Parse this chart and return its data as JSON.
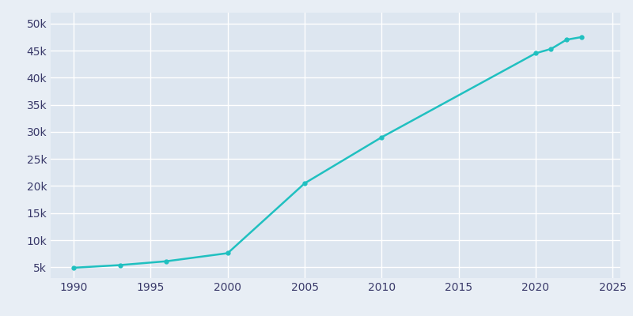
{
  "years": [
    1990,
    1993,
    1996,
    2000,
    2005,
    2010,
    2020,
    2021,
    2022,
    2023
  ],
  "population": [
    4910,
    5400,
    6100,
    7600,
    20500,
    29000,
    44500,
    45300,
    47000,
    47500
  ],
  "line_color": "#20c0c0",
  "bg_color": "#e8eef5",
  "plot_bg_color": "#dde6f0",
  "grid_color": "#ffffff",
  "tick_color": "#3a3a6a",
  "xlim": [
    1988.5,
    2025.5
  ],
  "ylim": [
    3000,
    52000
  ],
  "yticks": [
    5000,
    10000,
    15000,
    20000,
    25000,
    30000,
    35000,
    40000,
    45000,
    50000
  ],
  "xticks": [
    1990,
    1995,
    2000,
    2005,
    2010,
    2015,
    2020,
    2025
  ],
  "line_width": 1.8,
  "marker": "o",
  "marker_size": 3.5
}
